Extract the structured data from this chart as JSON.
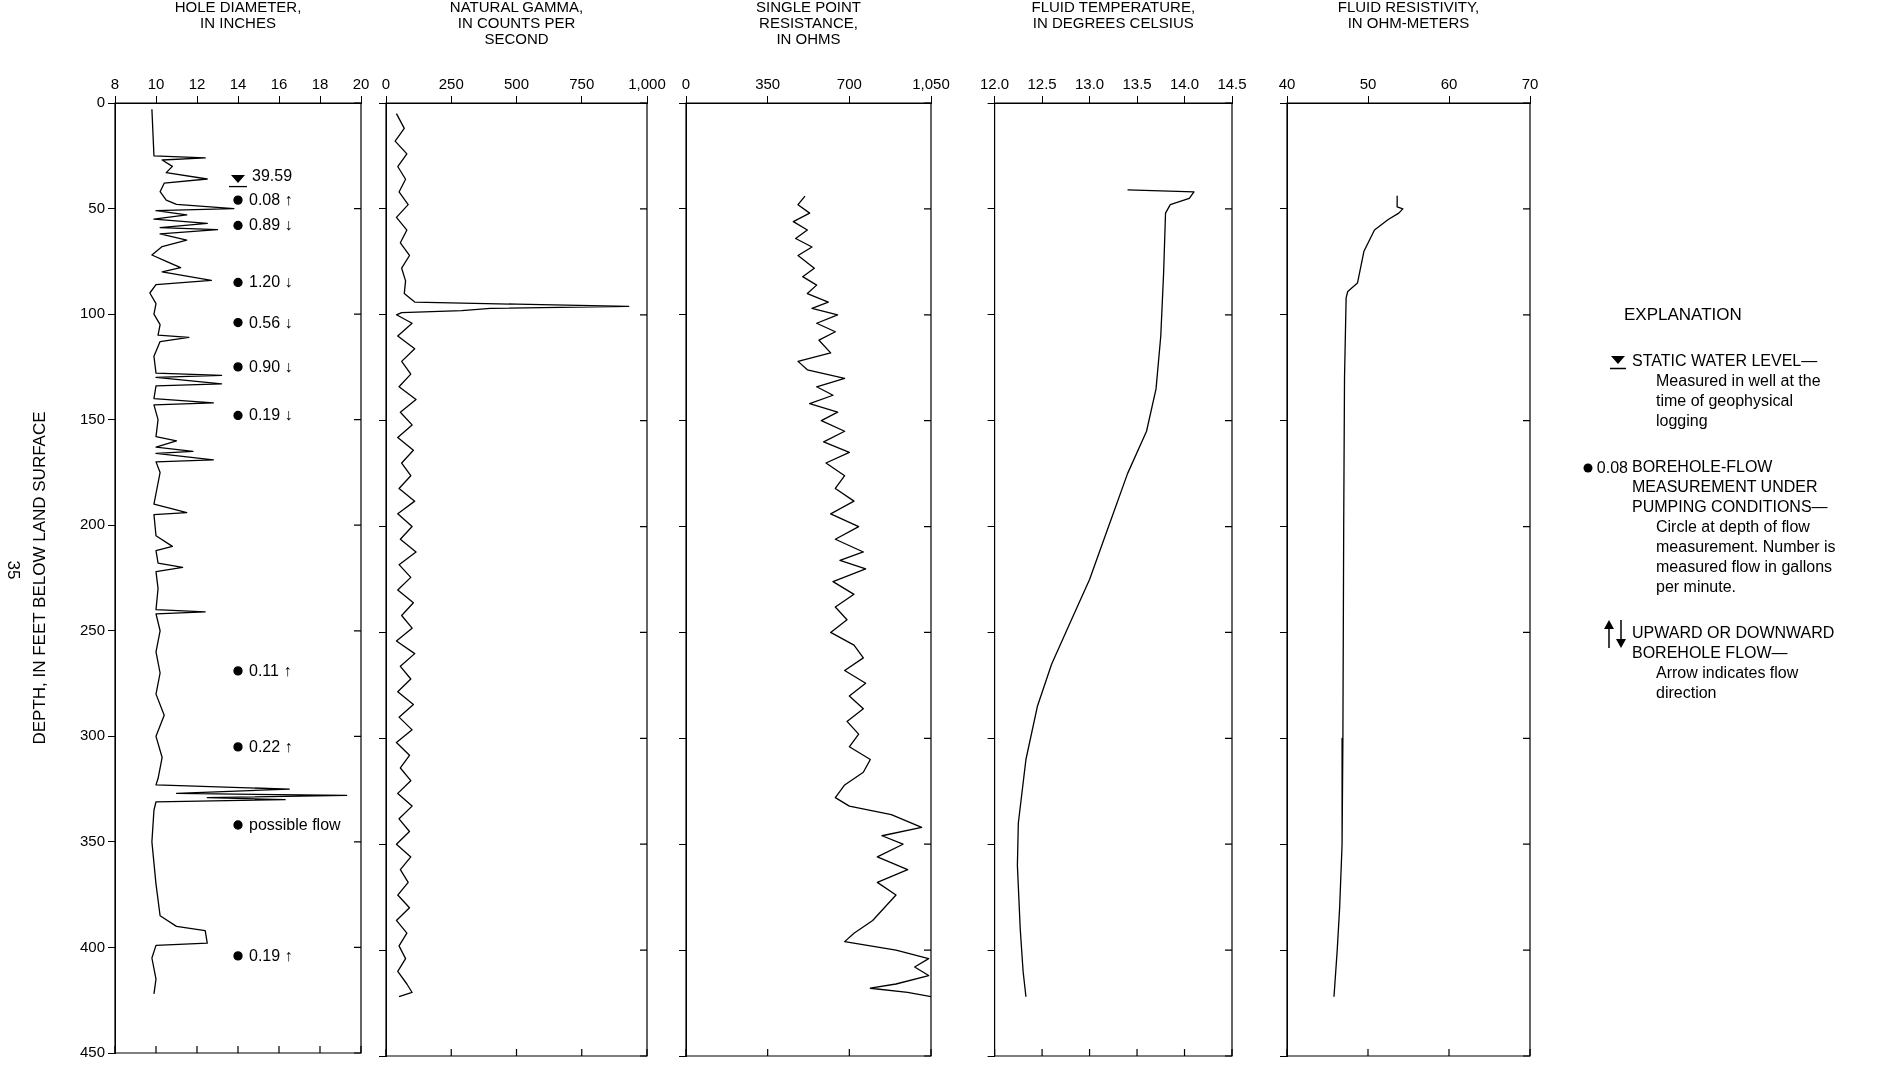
{
  "chart_data": [
    {
      "type": "line",
      "xlabel": "HOLE DIAMETER,\nIN INCHES",
      "ylabel": "DEPTH, IN FEET BELOW LAND SURFACE",
      "xlim": [
        8,
        20
      ],
      "xticks": [
        8,
        10,
        12,
        14,
        16,
        18,
        20
      ],
      "ylim": [
        450,
        0
      ],
      "yticks": [
        0,
        50,
        100,
        150,
        200,
        250,
        300,
        350,
        400,
        450
      ],
      "series": [
        {
          "color": "#000000",
          "x": [
            9.8,
            9.9,
            12.4,
            10.3,
            10.8,
            10.5,
            12.5,
            10.4,
            10.2,
            10.5,
            11,
            13.8,
            10,
            11.5,
            9.9,
            12.5,
            10.2,
            13,
            10.2,
            11.5,
            10.3,
            9.8,
            10.5,
            11.2,
            10.3,
            12.7,
            10,
            9.7,
            10,
            9.9,
            10.2,
            10.1,
            11.6,
            10.2,
            9.9,
            10,
            13.2,
            10,
            13.2,
            10,
            9.9,
            12.8,
            9.9,
            10.1,
            10,
            11,
            10,
            11.8,
            10,
            12.8,
            10,
            10.2,
            10.1,
            9.9,
            11.5,
            9.9,
            10,
            10.8,
            10,
            10.1,
            11.3,
            10,
            10.1,
            10,
            12.4,
            10,
            10.2,
            10,
            10.2,
            10,
            10.4,
            10,
            10.3,
            10.1,
            10,
            16.5,
            11,
            19.3,
            12.5,
            16.3,
            10,
            9.9,
            9.8,
            10,
            10.2,
            11,
            12.4,
            12.5,
            10,
            9.8,
            10,
            9.9
          ],
          "values": [
            3,
            25,
            26,
            27,
            30,
            33,
            36,
            38,
            42,
            46,
            48,
            50,
            51,
            53,
            55,
            57,
            59,
            60,
            62,
            65,
            68,
            72,
            75,
            78,
            80,
            84,
            86,
            90,
            95,
            100,
            105,
            110,
            111,
            113,
            120,
            128,
            129,
            130,
            133,
            134,
            140,
            142,
            143,
            150,
            158,
            160,
            163,
            165,
            166,
            169,
            170,
            175,
            180,
            190,
            194,
            195,
            205,
            210,
            212,
            218,
            220,
            222,
            230,
            240,
            241,
            242,
            250,
            260,
            270,
            280,
            290,
            300,
            310,
            320,
            323,
            325,
            327,
            328,
            329,
            330,
            331,
            335,
            350,
            370,
            385,
            390,
            392,
            398,
            399,
            405,
            415,
            422
          ]
        },
        {
          "type": "scatter",
          "marker": "circle",
          "color": "#000000",
          "x": [
            14,
            14,
            14,
            14,
            14,
            14,
            14,
            14,
            14,
            14
          ],
          "values": [
            46,
            58,
            85,
            104,
            125,
            148,
            269,
            305,
            342,
            404
          ]
        }
      ],
      "ref_lines": [
        {
          "axis": "y",
          "value": 39.59,
          "label": "39.59"
        }
      ],
      "annotations": [
        "35",
        "0.08 ↑",
        "0.89 ↓",
        "1.20 ↓",
        "0.56 ↓",
        "0.90 ↓",
        "0.19 ↓",
        "0.11 ↑",
        "0.22 ↑",
        "possible flow",
        "0.19 ↑"
      ]
    },
    {
      "type": "line",
      "xlabel": "NATURAL GAMMA,\nIN COUNTS PER\nSECOND",
      "xlim": [
        0,
        1000
      ],
      "xticks": [
        0,
        250,
        500,
        750,
        {
          "value": 1000,
          "label": "1,000"
        }
      ],
      "ylim": [
        450,
        0
      ],
      "yticks": [
        0,
        50,
        100,
        150,
        200,
        250,
        300,
        350,
        400,
        450
      ],
      "tick_labels": "x",
      "series": [
        {
          "color": "#000000",
          "x": [
            40,
            70,
            35,
            80,
            45,
            75,
            50,
            85,
            40,
            80,
            55,
            90,
            60,
            75,
            70,
            110,
            500,
            930,
            400,
            290,
            60,
            40,
            100,
            45,
            110,
            60,
            95,
            50,
            115,
            55,
            100,
            45,
            105,
            60,
            95,
            50,
            110,
            45,
            100,
            55,
            115,
            50,
            95,
            45,
            105,
            60,
            100,
            40,
            110,
            55,
            95,
            45,
            105,
            50,
            100,
            40,
            90,
            55,
            95,
            45,
            100,
            50,
            90,
            40,
            95,
            55,
            85,
            45,
            90,
            40,
            80,
            50,
            75,
            45,
            80,
            100,
            50
          ],
          "values": [
            5,
            12,
            18,
            24,
            30,
            36,
            42,
            48,
            54,
            60,
            66,
            72,
            78,
            84,
            90,
            94,
            95,
            96,
            97,
            98,
            99,
            100,
            104,
            110,
            116,
            122,
            128,
            134,
            140,
            146,
            152,
            158,
            164,
            170,
            176,
            182,
            188,
            194,
            200,
            206,
            212,
            218,
            224,
            230,
            236,
            242,
            248,
            254,
            260,
            266,
            272,
            278,
            284,
            290,
            296,
            302,
            308,
            314,
            320,
            326,
            332,
            338,
            344,
            350,
            356,
            362,
            368,
            374,
            380,
            386,
            392,
            398,
            404,
            410,
            416,
            420,
            422
          ]
        }
      ]
    },
    {
      "type": "line",
      "xlabel": "SINGLE POINT\nRESISTANCE,\nIN OHMS",
      "xlim": [
        0,
        1050
      ],
      "xticks": [
        0,
        350,
        700,
        {
          "value": 1050,
          "label": "1,050"
        }
      ],
      "ylim": [
        450,
        0
      ],
      "yticks": [
        0,
        50,
        100,
        150,
        200,
        250,
        300,
        350,
        400,
        450
      ],
      "tick_labels": "x",
      "series": [
        {
          "color": "#000000",
          "x": [
            510,
            480,
            530,
            460,
            520,
            470,
            540,
            480,
            550,
            500,
            560,
            520,
            610,
            540,
            650,
            560,
            640,
            570,
            620,
            480,
            520,
            680,
            560,
            630,
            530,
            650,
            580,
            680,
            590,
            700,
            600,
            680,
            640,
            720,
            620,
            740,
            640,
            760,
            660,
            770,
            630,
            720,
            640,
            690,
            620,
            720,
            760,
            680,
            770,
            700,
            760,
            690,
            740,
            700,
            790,
            760,
            680,
            640,
            700,
            880,
            1010,
            840,
            930,
            820,
            950,
            820,
            900,
            850,
            800,
            720,
            680,
            900,
            1040,
            980,
            1040,
            900,
            790,
            950,
            1050
          ],
          "values": [
            44,
            48,
            52,
            56,
            60,
            64,
            68,
            72,
            78,
            82,
            86,
            90,
            94,
            97,
            100,
            104,
            108,
            112,
            118,
            122,
            126,
            130,
            134,
            138,
            142,
            146,
            150,
            155,
            160,
            165,
            170,
            176,
            182,
            188,
            194,
            200,
            206,
            212,
            216,
            220,
            226,
            232,
            238,
            244,
            250,
            256,
            262,
            268,
            274,
            280,
            286,
            292,
            298,
            304,
            310,
            316,
            322,
            328,
            332,
            336,
            342,
            346,
            350,
            356,
            362,
            368,
            374,
            380,
            386,
            392,
            396,
            400,
            404,
            408,
            412,
            416,
            418,
            420,
            422
          ]
        }
      ]
    },
    {
      "type": "line",
      "xlabel": "FLUID TEMPERATURE,\nIN DEGREES CELSIUS",
      "xlim": [
        12,
        14.5
      ],
      "xticks": [
        {
          "value": 12,
          "label": "12.0"
        },
        12.5,
        {
          "value": 13,
          "label": "13.0"
        },
        13.5,
        {
          "value": 14,
          "label": "14.0"
        },
        14.5
      ],
      "ylim": [
        450,
        0
      ],
      "yticks": [
        0,
        50,
        100,
        150,
        200,
        250,
        300,
        350,
        400,
        450
      ],
      "tick_labels": "x",
      "series": [
        {
          "color": "#000000",
          "x": [
            13.4,
            14.1,
            14.05,
            13.85,
            13.8,
            13.78,
            13.75,
            13.7,
            13.6,
            13.4,
            13.2,
            13,
            12.8,
            12.6,
            12.45,
            12.33,
            12.25,
            12.24,
            12.27,
            12.3,
            12.33
          ],
          "values": [
            41,
            42,
            45,
            48,
            52,
            80,
            110,
            135,
            155,
            175,
            200,
            225,
            245,
            265,
            285,
            310,
            340,
            360,
            390,
            410,
            422
          ]
        }
      ]
    },
    {
      "type": "line",
      "xlabel": "FLUID RESISTIVITY,\nIN OHM-METERS",
      "xlim": [
        40,
        70
      ],
      "xticks": [
        40,
        50,
        60,
        70
      ],
      "ylim": [
        450,
        0
      ],
      "yticks": [
        0,
        50,
        100,
        150,
        200,
        250,
        300,
        350,
        400,
        450
      ],
      "tick_labels": "x",
      "series": [
        {
          "color": "#000000",
          "x": [
            53.6,
            53.6,
            54.3,
            53.8,
            52.5,
            50.8,
            49.5,
            48.7,
            47.5,
            47.3,
            47.1,
            47,
            46.9,
            46.8,
            46.5,
            46.2,
            45.8
          ],
          "values": [
            44,
            49,
            50,
            52,
            55,
            60,
            70,
            85,
            89,
            92,
            130,
            200,
            300,
            350,
            380,
            400,
            422
          ]
        }
      ]
    },
    {
      "type": "other",
      "annotations": [
        "EXPLANATION",
        "STATIC WATER LEVEL—",
        "Measured in well at the time of geophysical logging",
        "0.08",
        "BOREHOLE-FLOW MEASUREMENT UNDER PUMPING CONDITIONS—",
        "Circle at depth of flow measurement. Number is measured flow in gallons per minute.",
        "UPWARD OR DOWNWARD BOREHOLE FLOW—",
        "Arrow indicates flow direction"
      ]
    }
  ]
}
